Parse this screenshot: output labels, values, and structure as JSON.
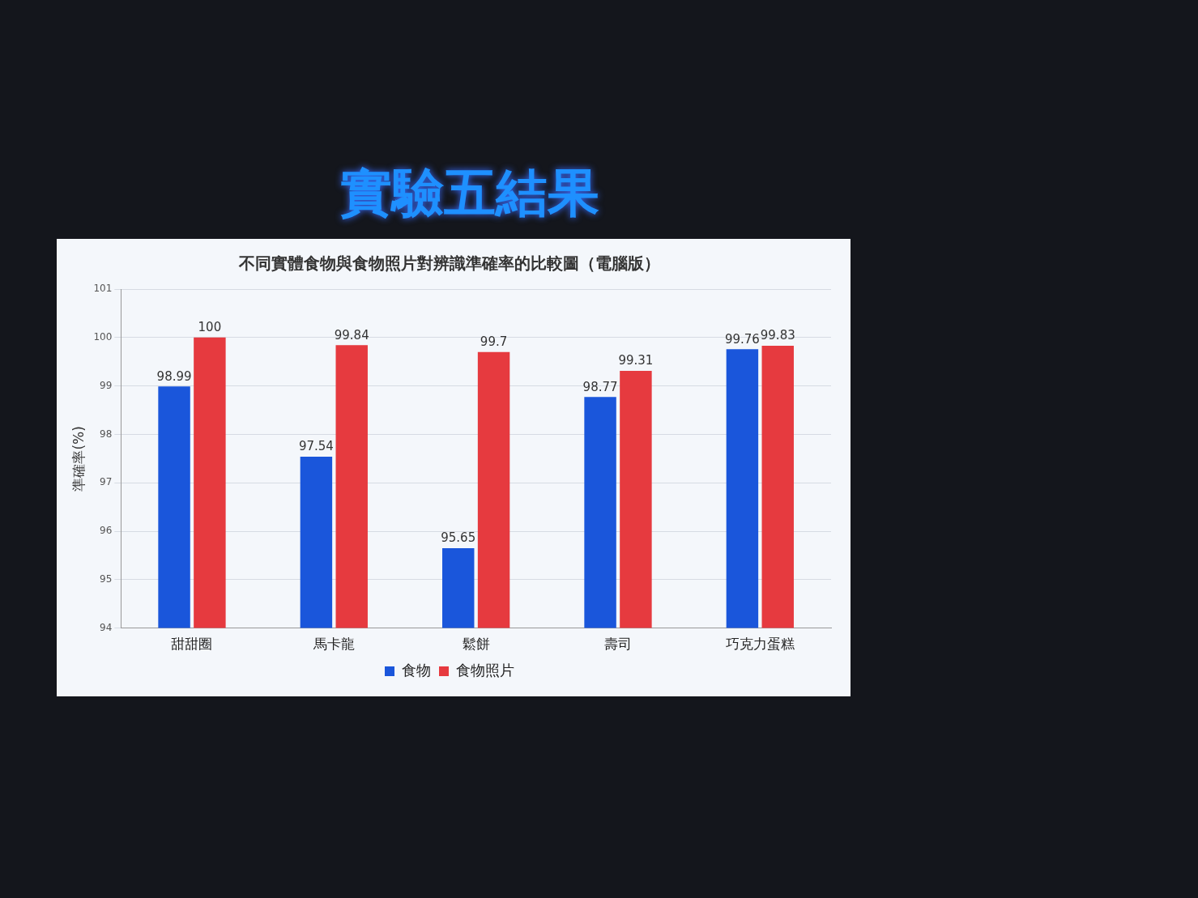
{
  "slide_title": "實驗五結果",
  "chart_data": {
    "type": "bar",
    "title": "不同實體食物與食物照片對辨識準確率的比較圖（電腦版）",
    "y_label": "準確率(%)",
    "categories": [
      "甜甜圈",
      "馬卡龍",
      "鬆餅",
      "壽司",
      "巧克力蛋糕"
    ],
    "series": [
      {
        "name": "食物",
        "color": "#1a56db",
        "values": [
          98.99,
          97.54,
          95.65,
          98.77,
          99.76
        ]
      },
      {
        "name": "食物照片",
        "color": "#e63a3f",
        "values": [
          100,
          99.84,
          99.7,
          99.31,
          99.83
        ]
      }
    ],
    "ylim": [
      94,
      101
    ],
    "yticks": [
      94,
      95,
      96,
      97,
      98,
      99,
      100,
      101
    ],
    "grid": true,
    "legend": "bottom",
    "data_labels": true
  }
}
